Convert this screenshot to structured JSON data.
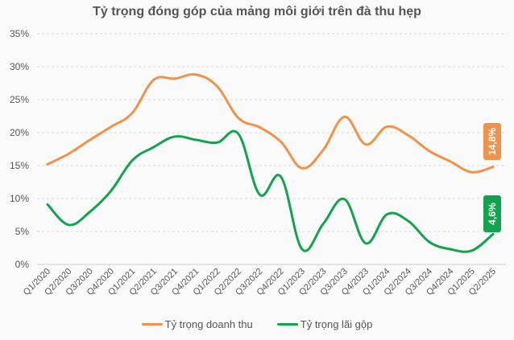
{
  "chart_data": {
    "type": "line",
    "title": "Tỷ trọng đóng góp của mảng môi giới trên đà thu hẹp",
    "xlabel": "",
    "ylabel": "",
    "ylim": [
      0,
      35
    ],
    "y_ticks": [
      "0%",
      "5%",
      "10%",
      "15%",
      "20%",
      "25%",
      "30%",
      "35%"
    ],
    "grid": true,
    "legend_position": "bottom",
    "categories": [
      "Q1/2020",
      "Q2/2020",
      "Q3/2020",
      "Q4/2020",
      "Q1/2021",
      "Q2/2021",
      "Q3/2021",
      "Q4/2021",
      "Q1/2022",
      "Q2/2022",
      "Q3/2022",
      "Q4/2022",
      "Q1/2023",
      "Q2/2023",
      "Q3/2023",
      "Q4/2023",
      "Q1/2024",
      "Q2/2024",
      "Q3/2024",
      "Q4/2024",
      "Q1/2025",
      "Q2/2025"
    ],
    "series": [
      {
        "name": "Tỷ trọng doanh thu",
        "color": "#f0924a",
        "values": [
          15.2,
          16.8,
          18.9,
          20.9,
          23.0,
          28.0,
          28.2,
          28.8,
          27.0,
          22.2,
          20.8,
          18.6,
          14.6,
          17.4,
          22.4,
          18.2,
          20.9,
          19.6,
          17.2,
          15.6,
          14.0,
          14.8
        ],
        "end_label": "14,8%"
      },
      {
        "name": "Tỷ trọng lãi gộp",
        "color": "#12a34e",
        "values": [
          9.1,
          6.0,
          8.0,
          11.2,
          15.8,
          17.8,
          19.4,
          18.9,
          18.5,
          19.8,
          10.6,
          13.3,
          2.3,
          6.2,
          9.9,
          3.2,
          7.6,
          6.6,
          3.4,
          2.3,
          2.1,
          4.6
        ],
        "end_label": "4,6%"
      }
    ]
  },
  "legend": {
    "items": [
      {
        "label": "Tỷ trọng doanh thu",
        "color": "#f0924a"
      },
      {
        "label": "Tỷ trọng lãi gộp",
        "color": "#12a34e"
      }
    ]
  }
}
